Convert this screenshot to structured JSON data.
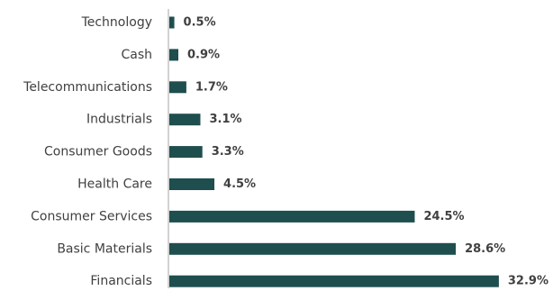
{
  "chart_data": {
    "type": "bar",
    "orientation": "horizontal",
    "categories": [
      "Technology",
      "Cash",
      "Telecommunications",
      "Industrials",
      "Consumer Goods",
      "Health Care",
      "Consumer Services",
      "Basic Materials",
      "Financials"
    ],
    "values": [
      0.5,
      0.9,
      1.7,
      3.1,
      3.3,
      4.5,
      24.5,
      28.6,
      32.9
    ],
    "value_labels": [
      "0.5%",
      "0.9%",
      "1.7%",
      "3.1%",
      "3.3%",
      "4.5%",
      "24.5%",
      "28.6%",
      "32.9%"
    ],
    "unit": "%",
    "title": "",
    "xlabel": "",
    "ylabel": "",
    "xlim": [
      0,
      33
    ],
    "grid": false,
    "legend": "none",
    "bar_color": "#1f4e4e",
    "axis_color": "#a6a6a6",
    "label_color": "#404040"
  }
}
